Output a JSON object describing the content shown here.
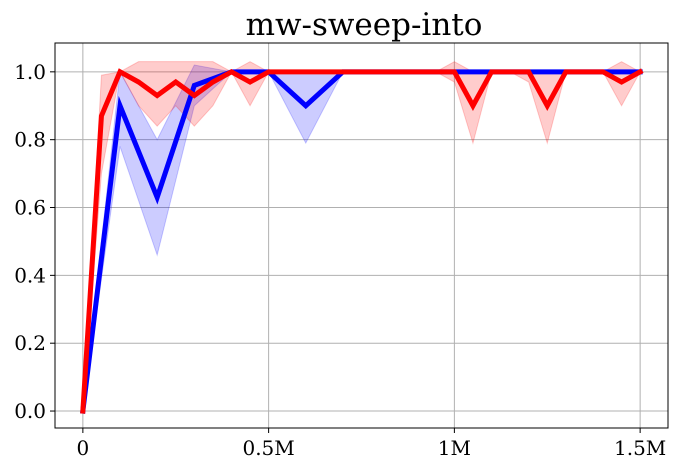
{
  "chart_data": {
    "type": "line",
    "title": "mw-sweep-into",
    "xlabel": "",
    "ylabel": "",
    "xlim": [
      -75000,
      1575000
    ],
    "ylim": [
      -0.05,
      1.085
    ],
    "grid": true,
    "x_ticks": [
      {
        "value": 0,
        "label": "0"
      },
      {
        "value": 500000,
        "label": "0.5M"
      },
      {
        "value": 1000000,
        "label": "1M"
      },
      {
        "value": 1500000,
        "label": "1.5M"
      }
    ],
    "y_ticks": [
      {
        "value": 0.0,
        "label": "0.0"
      },
      {
        "value": 0.2,
        "label": "0.2"
      },
      {
        "value": 0.4,
        "label": "0.4"
      },
      {
        "value": 0.6,
        "label": "0.6"
      },
      {
        "value": 0.8,
        "label": "0.8"
      },
      {
        "value": 1.0,
        "label": "1.0"
      }
    ],
    "series": [
      {
        "color": "#0000ff",
        "band_color": "#0000ff",
        "x": [
          0,
          100000,
          200000,
          300000,
          400000,
          500000,
          600000,
          700000,
          800000,
          900000,
          1000000,
          1100000,
          1200000,
          1300000,
          1400000,
          1500000
        ],
        "y": [
          0,
          0.9,
          0.63,
          0.96,
          1.0,
          1.0,
          0.9,
          1.0,
          1.0,
          1.0,
          1.0,
          1.0,
          1.0,
          1.0,
          1.0,
          1.0
        ],
        "lower": [
          0,
          0.78,
          0.46,
          0.9,
          1.0,
          1.0,
          0.79,
          1.0,
          1.0,
          1.0,
          1.0,
          1.0,
          1.0,
          1.0,
          1.0,
          1.0
        ],
        "upper": [
          0,
          1.0,
          0.8,
          1.02,
          1.0,
          1.0,
          1.0,
          1.0,
          1.0,
          1.0,
          1.0,
          1.0,
          1.0,
          1.0,
          1.0,
          1.0
        ]
      },
      {
        "color": "#ff0000",
        "band_color": "#ff0000",
        "x": [
          0,
          50000,
          100000,
          150000,
          200000,
          250000,
          300000,
          350000,
          400000,
          450000,
          500000,
          550000,
          600000,
          650000,
          700000,
          750000,
          800000,
          850000,
          900000,
          950000,
          1000000,
          1050000,
          1100000,
          1150000,
          1200000,
          1250000,
          1300000,
          1350000,
          1400000,
          1450000,
          1500000
        ],
        "y": [
          0,
          0.87,
          1.0,
          0.97,
          0.93,
          0.97,
          0.93,
          0.97,
          1.0,
          0.97,
          1.0,
          1.0,
          1.0,
          1.0,
          1.0,
          1.0,
          1.0,
          1.0,
          1.0,
          1.0,
          1.0,
          0.9,
          1.0,
          1.0,
          1.0,
          0.9,
          1.0,
          1.0,
          1.0,
          0.97,
          1.0
        ],
        "lower": [
          0,
          0.7,
          1.0,
          0.9,
          0.84,
          0.9,
          0.84,
          0.9,
          1.0,
          0.9,
          1.0,
          1.0,
          1.0,
          1.0,
          1.0,
          1.0,
          1.0,
          1.0,
          1.0,
          1.0,
          0.97,
          0.79,
          1.0,
          1.0,
          0.97,
          0.79,
          1.0,
          1.0,
          1.0,
          0.9,
          1.0
        ],
        "upper": [
          0,
          0.99,
          1.0,
          1.03,
          1.03,
          1.03,
          1.03,
          1.03,
          1.0,
          1.03,
          1.0,
          1.0,
          1.0,
          1.0,
          1.0,
          1.0,
          1.0,
          1.0,
          1.0,
          1.0,
          1.03,
          1.0,
          1.0,
          1.0,
          1.0,
          1.0,
          1.0,
          1.0,
          1.0,
          1.03,
          1.0
        ]
      }
    ]
  }
}
